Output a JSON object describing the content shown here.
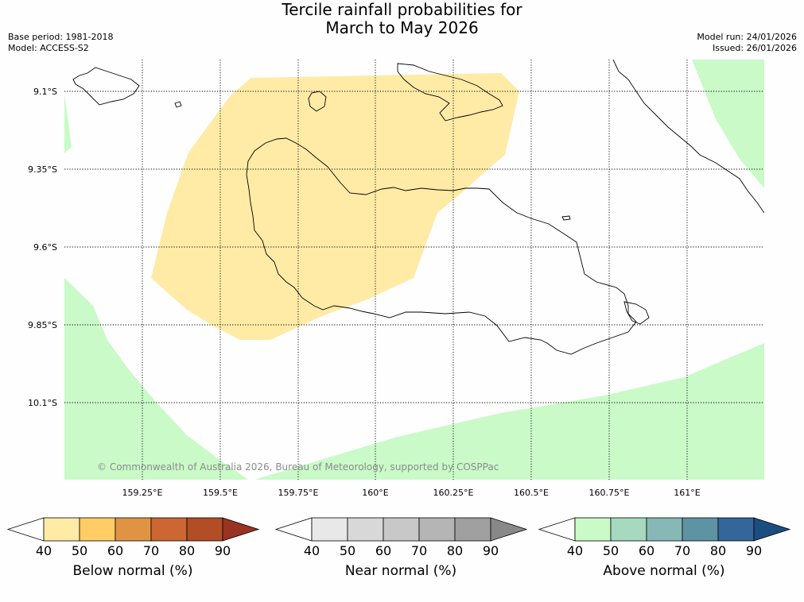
{
  "header": {
    "title_line1": "Tercile rainfall probabilities for",
    "title_line2": "March to May 2026",
    "base_period": "Base period: 1981-2018",
    "model": "Model: ACCESS-S2",
    "model_run": "Model run: 24/01/2026",
    "issued": "Issued: 26/01/2026"
  },
  "map": {
    "lat_labels": [
      "9.1°S",
      "9.35°S",
      "9.6°S",
      "9.85°S",
      "10.1°S"
    ],
    "lon_labels": [
      "159.25°E",
      "159.5°E",
      "159.75°E",
      "160°E",
      "160.25°E",
      "160.5°E",
      "160.75°E",
      "161°E"
    ],
    "copyright": "© Commonwealth of Australia 2026, Bureau of Meteorology, supported by COSPPac",
    "colors": {
      "below_50": "#ffeba6",
      "above_50": "#c9fac8",
      "coast": "#000000",
      "grid": "#000000"
    }
  },
  "colorbars": [
    {
      "title": "Below normal (%)",
      "ticks": [
        "40",
        "50",
        "60",
        "70",
        "80",
        "90"
      ],
      "colors": [
        "#ffffff",
        "#ffeba6",
        "#ffcc66",
        "#e09443",
        "#cc6633",
        "#b24d26",
        "#993322"
      ]
    },
    {
      "title": "Near normal (%)",
      "ticks": [
        "40",
        "50",
        "60",
        "70",
        "80",
        "90"
      ],
      "colors": [
        "#ffffff",
        "#e8e8e8",
        "#d8d8d8",
        "#c8c8c8",
        "#b5b5b5",
        "#a0a0a0",
        "#888888"
      ]
    },
    {
      "title": "Above normal (%)",
      "ticks": [
        "40",
        "50",
        "60",
        "70",
        "80",
        "90"
      ],
      "colors": [
        "#ffffff",
        "#c9fac8",
        "#a6d9be",
        "#86b8b6",
        "#5e93a3",
        "#356699",
        "#1a4d80"
      ]
    }
  ]
}
